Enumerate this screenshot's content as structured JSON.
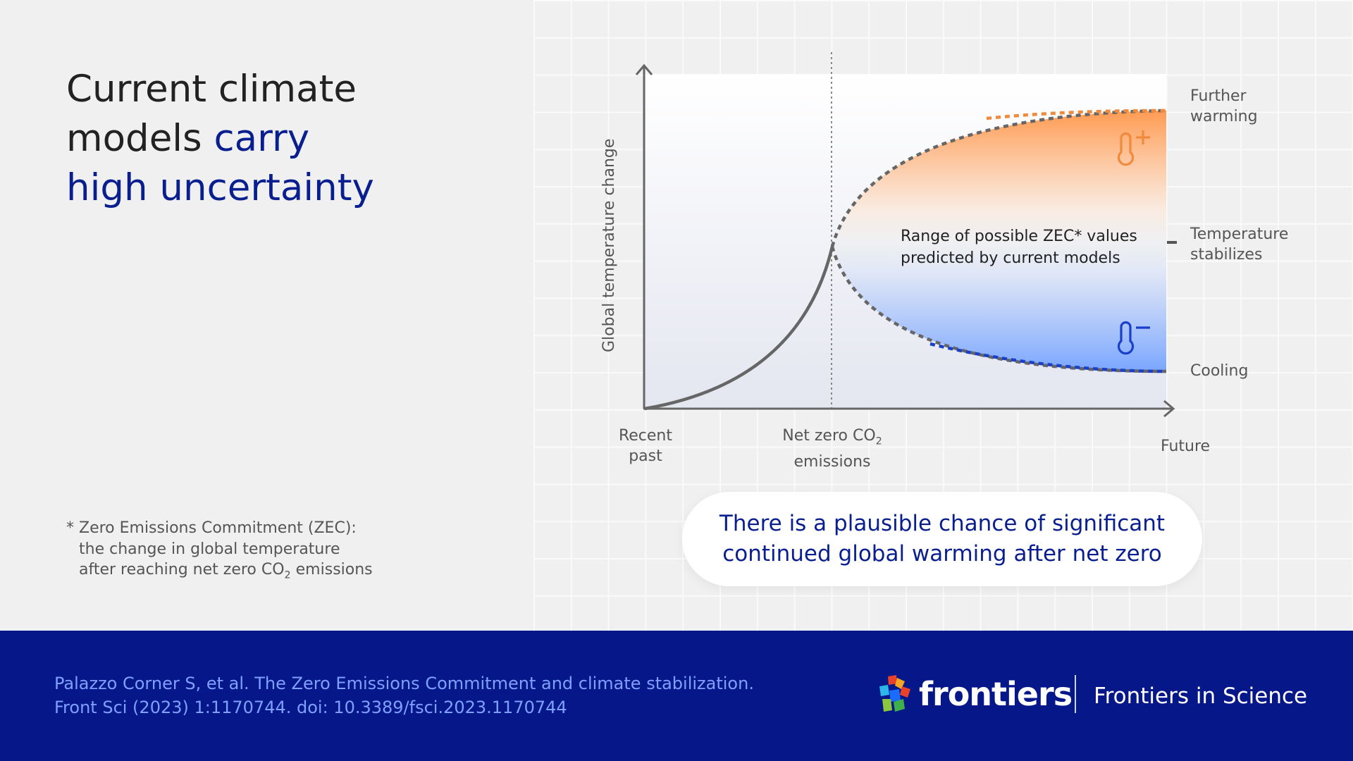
{
  "heading": {
    "line1": "Current climate",
    "line2_plain": "models ",
    "line2_accent": "carry",
    "line3_accent": "high uncertainty"
  },
  "footnote": {
    "line1": "* Zero Emissions Commitment (ZEC):",
    "line2": "the change in global temperature",
    "line3_pre": "after reaching net zero CO",
    "line3_sub": "2",
    "line3_post": " emissions"
  },
  "diagram": {
    "y_axis_label": "Global temperature change",
    "x_label_start_1": "Recent",
    "x_label_start_2": "past",
    "x_label_mid_1_pre": "Net zero CO",
    "x_label_mid_1_sub": "2",
    "x_label_mid_2": "emissions",
    "x_label_end": "Future",
    "range_text_1": "Range of possible ZEC* values",
    "range_text_2": "predicted by current models",
    "outcome_top_1": "Further",
    "outcome_top_2": "warming",
    "outcome_mid_1": "Temperature",
    "outcome_mid_2": "stabilizes",
    "outcome_bottom": "Cooling",
    "colors": {
      "warming": "#f08a3c",
      "cooling": "#1a3fc9",
      "curve": "#666666",
      "warming_fill": "#ff9b52",
      "cooling_fill": "#7aa6ff"
    },
    "icons": [
      "thermometer-plus-icon",
      "thermometer-minus-icon"
    ]
  },
  "callout": {
    "line1": "There is a plausible chance of significant",
    "line2": "continued global warming after net zero"
  },
  "footer": {
    "citation_1": "Palazzo Corner S, et al. The Zero Emissions Commitment and climate stabilization.",
    "citation_2": "Front Sci (2023) 1:1170744. doi: 10.3389/fsci.2023.1170744",
    "brand": "frontiers",
    "journal": "Frontiers in Science",
    "footer_color": "#061789"
  }
}
